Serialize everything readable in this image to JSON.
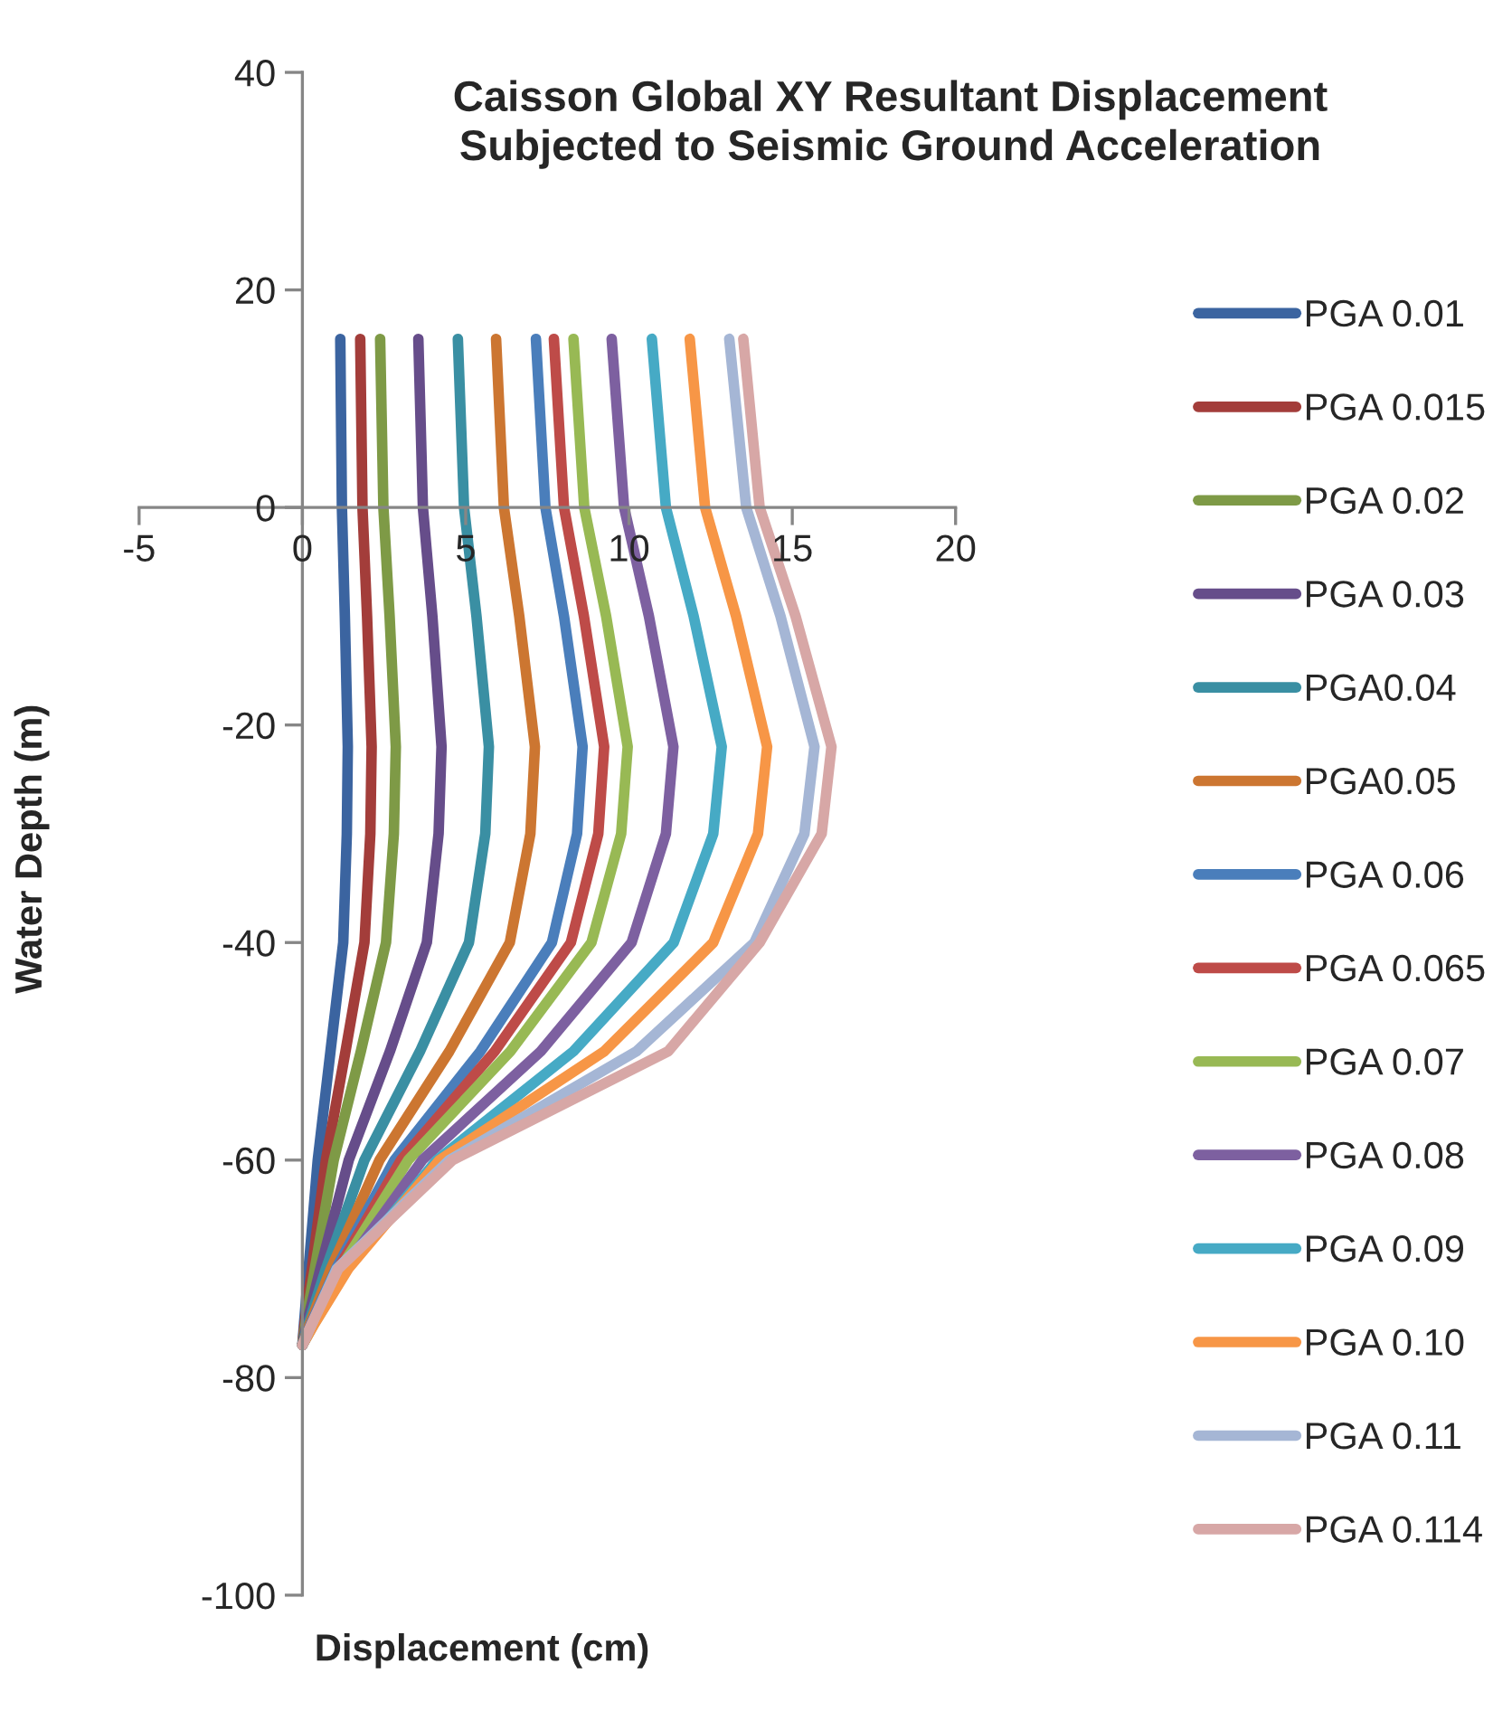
{
  "chart_data": {
    "type": "line",
    "title": "Caisson Global XY Resultant Displacement\nSubjected to Seismic Ground Acceleration",
    "xlabel": "Displacement (cm)",
    "ylabel": "Water Depth (m)",
    "xlim": [
      -5,
      20
    ],
    "xticks": [
      -5,
      0,
      5,
      10,
      15,
      20
    ],
    "ylim": [
      -100,
      40
    ],
    "yticks": [
      -100,
      -80,
      -60,
      -40,
      -20,
      0,
      20,
      40
    ],
    "grid": false,
    "legend": "right",
    "marker": "none",
    "line_style": "solid",
    "series": [
      {
        "name": "PGA 0.01",
        "color": "#3b64a0",
        "x": [
          1.16,
          1.21,
          1.3,
          1.39,
          1.36,
          1.25,
          0.86,
          0.47,
          0.19,
          0.05,
          0
        ],
        "values": [
          15.5,
          0,
          -10,
          -22,
          -30,
          -40,
          -50,
          -60,
          -70,
          -75,
          -77
        ]
      },
      {
        "name": "PGA 0.015",
        "color": "#a33d3a",
        "x": [
          1.77,
          1.84,
          1.98,
          2.12,
          2.08,
          1.9,
          1.32,
          0.72,
          0.29,
          0.07,
          0
        ],
        "values": [
          15.5,
          0,
          -10,
          -22,
          -30,
          -40,
          -50,
          -60,
          -70,
          -75,
          -77
        ]
      },
      {
        "name": "PGA 0.02",
        "color": "#7e9a46",
        "x": [
          2.38,
          2.48,
          2.67,
          2.86,
          2.8,
          2.56,
          1.79,
          0.96,
          0.38,
          0.1,
          0
        ],
        "values": [
          15.5,
          0,
          -10,
          -22,
          -30,
          -40,
          -50,
          -60,
          -70,
          -75,
          -77
        ]
      },
      {
        "name": "PGA 0.03",
        "color": "#664d8a",
        "x": [
          3.55,
          3.69,
          3.98,
          4.26,
          4.17,
          3.81,
          2.68,
          1.42,
          0.55,
          0.14,
          0
        ],
        "values": [
          15.5,
          0,
          -10,
          -22,
          -30,
          -40,
          -50,
          -60,
          -70,
          -75,
          -77
        ]
      },
      {
        "name": "PGA0.04",
        "color": "#3a8fa3",
        "x": [
          4.76,
          4.95,
          5.33,
          5.71,
          5.6,
          5.1,
          3.6,
          1.9,
          0.72,
          0.19,
          0
        ],
        "values": [
          15.5,
          0,
          -10,
          -22,
          -30,
          -40,
          -50,
          -60,
          -70,
          -75,
          -77
        ]
      },
      {
        "name": "PGA0.05",
        "color": "#cc7631",
        "x": [
          5.93,
          6.17,
          6.64,
          7.12,
          6.98,
          6.35,
          4.5,
          2.36,
          0.87,
          0.23,
          0
        ],
        "values": [
          15.5,
          0,
          -10,
          -22,
          -30,
          -40,
          -50,
          -60,
          -70,
          -75,
          -77
        ]
      },
      {
        "name": "PGA 0.06",
        "color": "#4a7ebb",
        "x": [
          7.15,
          7.44,
          8.01,
          8.58,
          8.41,
          7.64,
          5.45,
          2.82,
          1.03,
          0.27,
          0
        ],
        "values": [
          15.5,
          0,
          -10,
          -22,
          -30,
          -40,
          -50,
          -60,
          -70,
          -75,
          -77
        ]
      },
      {
        "name": "PGA 0.065",
        "color": "#be4b48",
        "x": [
          7.7,
          8.01,
          8.62,
          9.24,
          9.06,
          8.22,
          5.89,
          3.02,
          1.09,
          0.29,
          0
        ],
        "values": [
          15.5,
          0,
          -10,
          -22,
          -30,
          -40,
          -50,
          -60,
          -70,
          -75,
          -77
        ]
      },
      {
        "name": "PGA 0.07",
        "color": "#98b954",
        "x": [
          8.3,
          8.63,
          9.3,
          9.96,
          9.76,
          8.85,
          6.37,
          3.24,
          1.16,
          0.31,
          0
        ],
        "values": [
          15.5,
          0,
          -10,
          -22,
          -30,
          -40,
          -50,
          -60,
          -70,
          -75,
          -77
        ]
      },
      {
        "name": "PGA 0.08",
        "color": "#7d60a0",
        "x": [
          9.47,
          9.85,
          10.61,
          11.36,
          11.13,
          10.08,
          7.3,
          3.67,
          1.27,
          0.34,
          0
        ],
        "values": [
          15.5,
          0,
          -10,
          -22,
          -30,
          -40,
          -50,
          -60,
          -70,
          -75,
          -77
        ]
      },
      {
        "name": "PGA 0.09",
        "color": "#46aac5",
        "x": [
          10.7,
          11.13,
          11.98,
          12.84,
          12.58,
          11.37,
          8.3,
          4.12,
          1.38,
          0.37,
          0
        ],
        "values": [
          15.5,
          0,
          -10,
          -22,
          -30,
          -40,
          -50,
          -60,
          -70,
          -75,
          -77
        ]
      },
      {
        "name": "PGA 0.10",
        "color": "#f79646",
        "x": [
          11.86,
          12.33,
          13.28,
          14.23,
          13.95,
          12.58,
          9.24,
          4.2,
          1.4,
          0.38,
          0
        ],
        "values": [
          15.5,
          0,
          -10,
          -22,
          -30,
          -40,
          -50,
          -60,
          -70,
          -75,
          -77
        ]
      },
      {
        "name": "PGA 0.11",
        "color": "#a5b6d5",
        "x": [
          13.07,
          13.59,
          14.64,
          15.68,
          15.37,
          13.84,
          10.23,
          4.5,
          1.05,
          0.3,
          0
        ],
        "values": [
          15.5,
          0,
          -10,
          -22,
          -30,
          -40,
          -50,
          -60,
          -70,
          -75,
          -77
        ]
      },
      {
        "name": "PGA 0.114",
        "color": "#d7a7a6",
        "x": [
          13.5,
          14.0,
          15.1,
          16.2,
          15.9,
          14.0,
          11.2,
          4.6,
          1.1,
          0.3,
          0
        ],
        "values": [
          15.5,
          0,
          -10,
          -22,
          -30,
          -40,
          -50,
          -60,
          -70,
          -75,
          -77
        ]
      }
    ]
  }
}
